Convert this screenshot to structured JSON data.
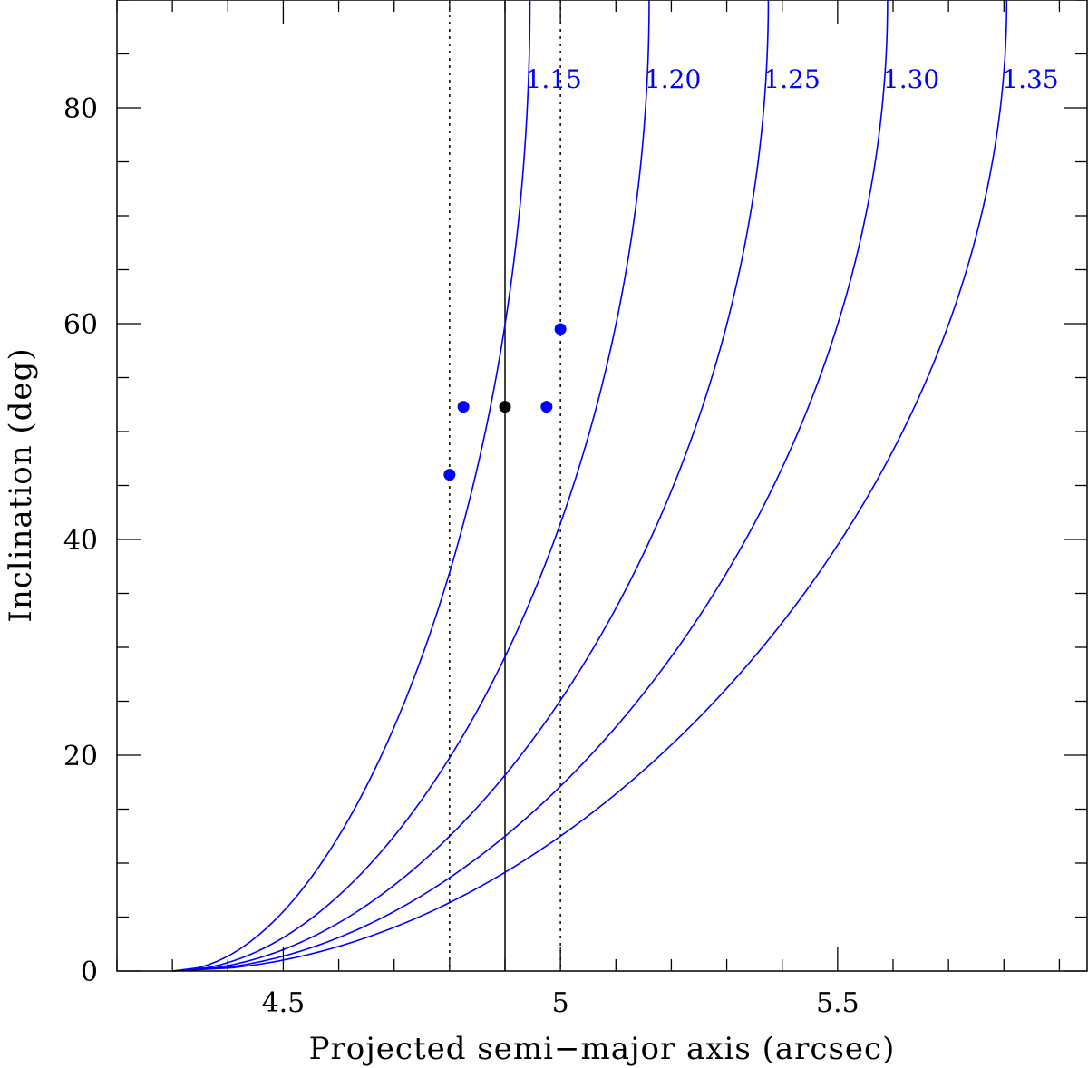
{
  "chart_data": {
    "type": "line",
    "xlabel": "Projected semi−major axis (arcsec)",
    "ylabel": "Inclination (deg)",
    "xlim": [
      4.2,
      5.95
    ],
    "ylim": [
      0,
      90
    ],
    "x_major_ticks": [
      4.5,
      5.0,
      5.5
    ],
    "x_tick_labels": [
      "4.5",
      "5",
      "5.5"
    ],
    "x_minor_step": 0.1,
    "y_major_ticks": [
      0,
      20,
      40,
      60,
      80
    ],
    "y_tick_labels": [
      "0",
      "20",
      "40",
      "60",
      "80"
    ],
    "y_minor_step": 5,
    "grid": false,
    "curve_color": "#0000ff",
    "marker_color": "#0000ff",
    "central_marker_color": "#000000",
    "curve_base_x": 4.3,
    "series": [
      {
        "label": "1.15",
        "x_at_90": 4.945
      },
      {
        "label": "1.20",
        "x_at_90": 5.16
      },
      {
        "label": "1.25",
        "x_at_90": 5.375
      },
      {
        "label": "1.30",
        "x_at_90": 5.59
      },
      {
        "label": "1.35",
        "x_at_90": 5.805
      }
    ],
    "vertical_lines": [
      {
        "x": 4.8,
        "style": "dotted"
      },
      {
        "x": 4.9,
        "style": "solid"
      },
      {
        "x": 5.0,
        "style": "dotted"
      }
    ],
    "points": [
      {
        "x": 4.8,
        "y": 46,
        "color": "blue"
      },
      {
        "x": 4.825,
        "y": 52.3,
        "color": "blue"
      },
      {
        "x": 4.9,
        "y": 52.3,
        "color": "black"
      },
      {
        "x": 4.975,
        "y": 52.3,
        "color": "blue"
      },
      {
        "x": 5.0,
        "y": 59.5,
        "color": "blue"
      }
    ]
  }
}
